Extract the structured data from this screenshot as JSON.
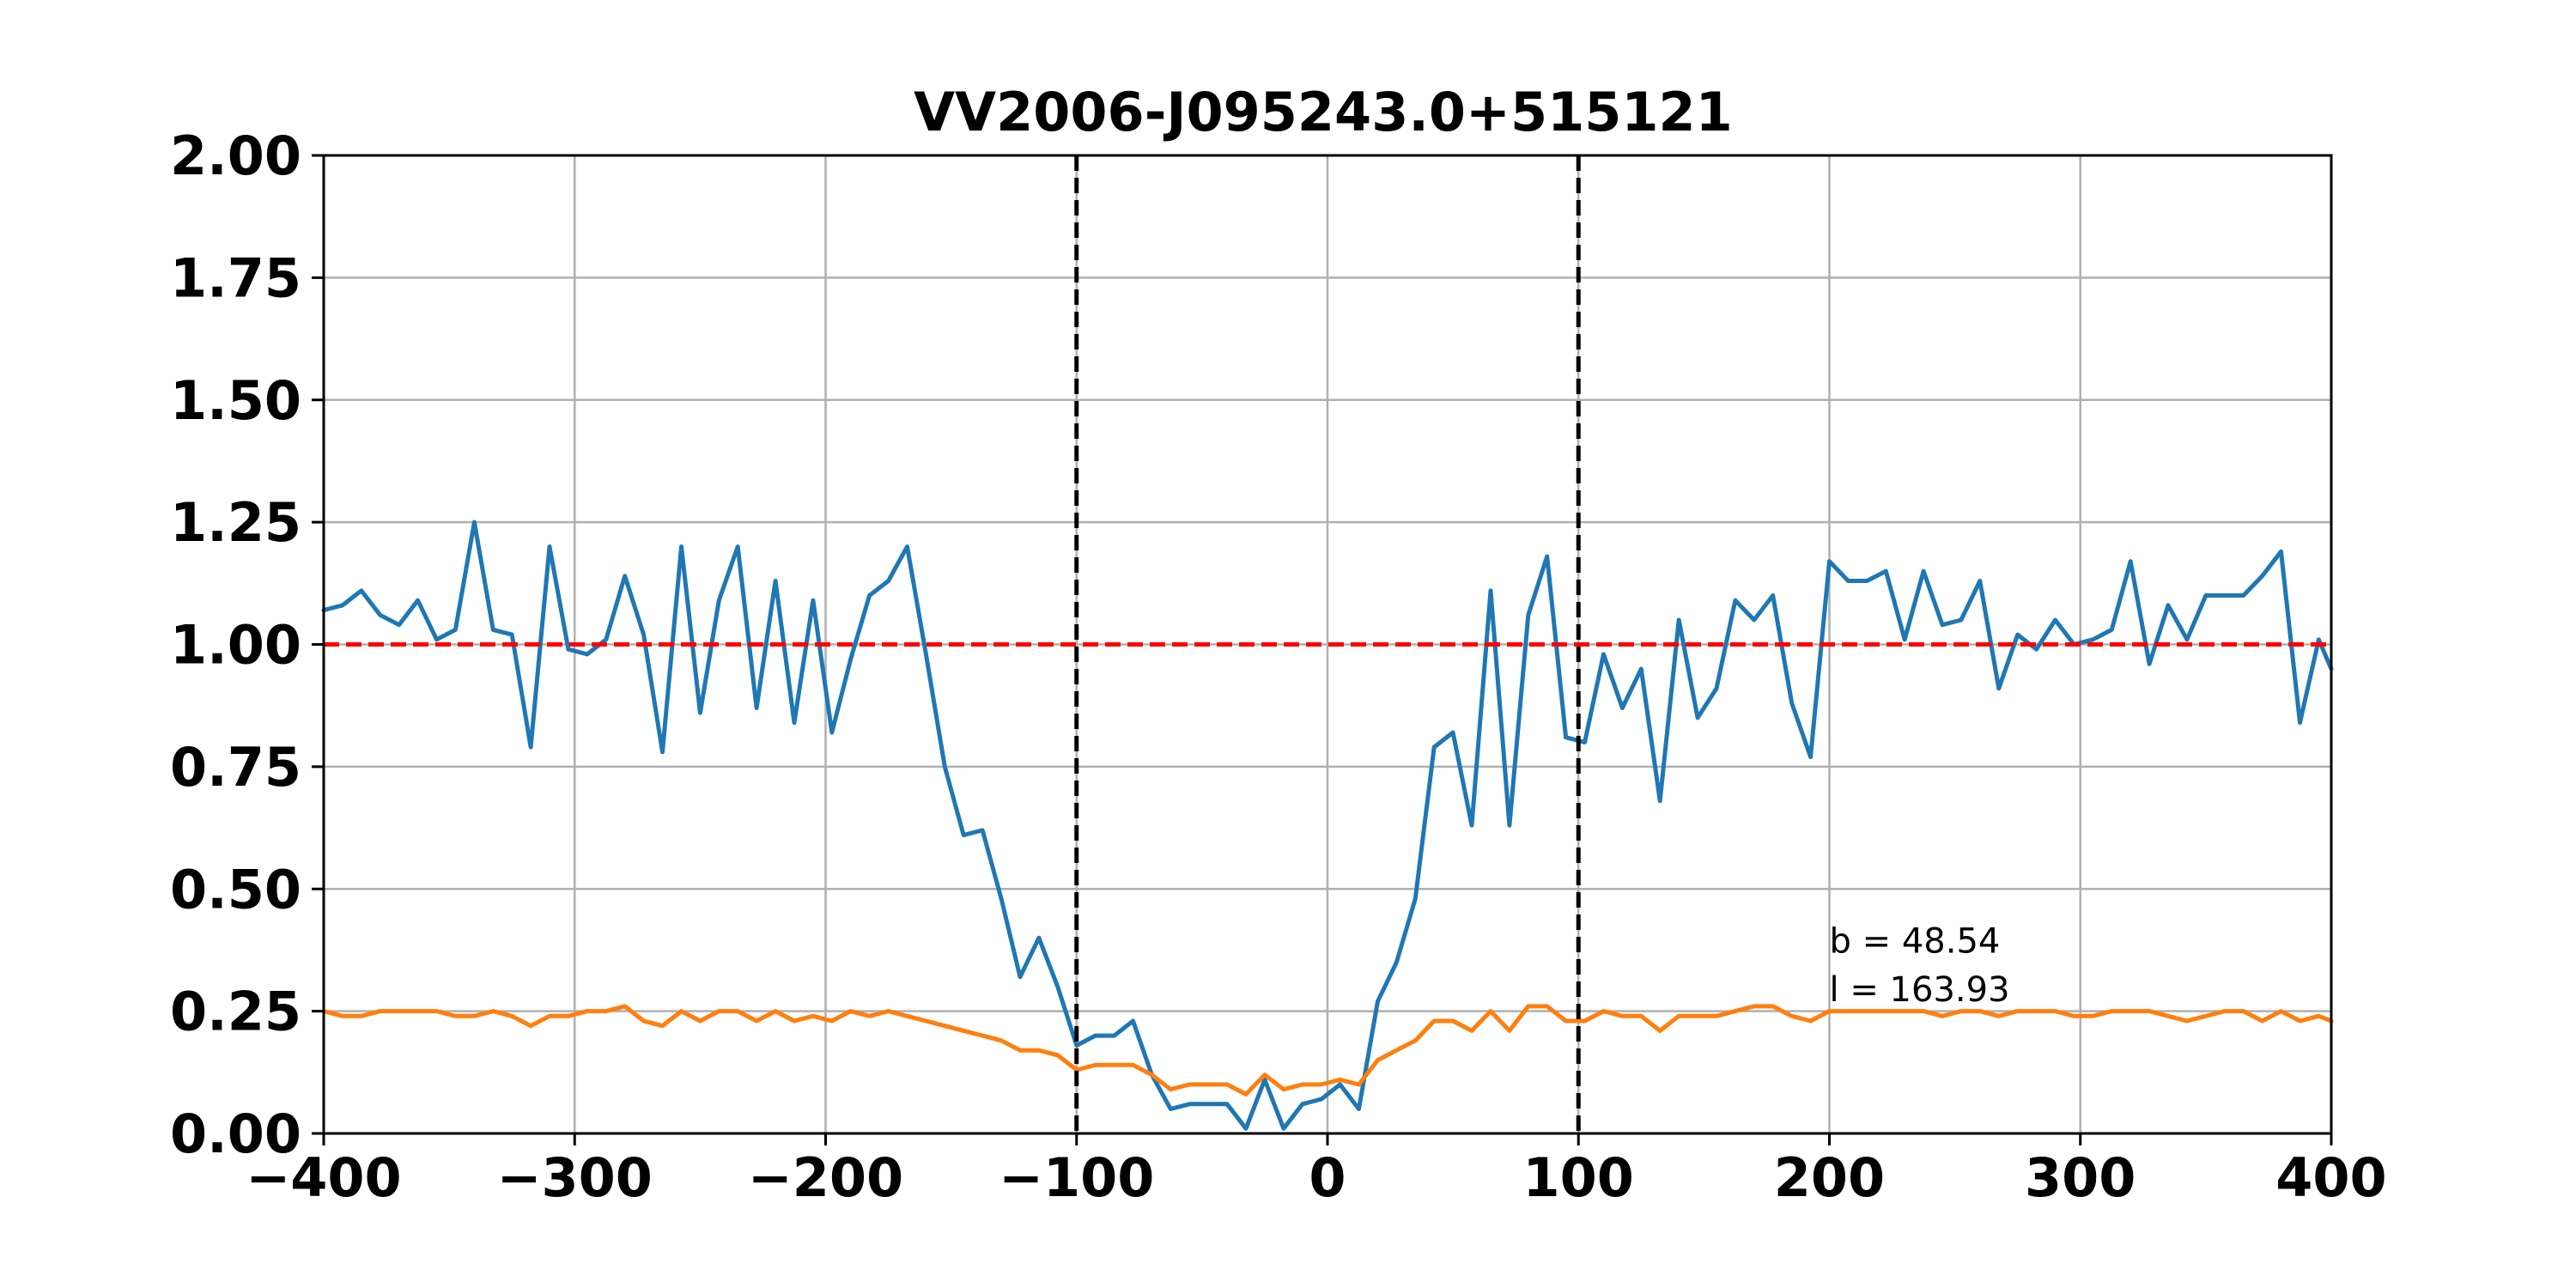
{
  "chart_data": {
    "type": "line",
    "title": "VV2006-J095243.0+515121",
    "xlabel": "",
    "ylabel": "",
    "xlim": [
      -400,
      400
    ],
    "ylim": [
      0.0,
      2.0
    ],
    "grid": true,
    "x_ticks": [
      -400,
      -300,
      -200,
      -100,
      0,
      100,
      200,
      300,
      400
    ],
    "x_tick_labels": [
      "−400",
      "−300",
      "−200",
      "−100",
      "0",
      "100",
      "200",
      "300",
      "400"
    ],
    "y_ticks": [
      0.0,
      0.25,
      0.5,
      0.75,
      1.0,
      1.25,
      1.5,
      1.75,
      2.0
    ],
    "y_tick_labels": [
      "0.00",
      "0.25",
      "0.50",
      "0.75",
      "1.00",
      "1.25",
      "1.50",
      "1.75",
      "2.00"
    ],
    "x": [
      -400,
      -392.5,
      -385,
      -377.5,
      -370,
      -362.5,
      -355,
      -347.5,
      -340,
      -332.5,
      -325,
      -317.5,
      -310,
      -302.5,
      -295,
      -287.5,
      -280,
      -272.5,
      -265,
      -257.5,
      -250,
      -242.5,
      -235,
      -227.5,
      -220,
      -212.5,
      -205,
      -197.5,
      -190,
      -182.5,
      -175,
      -167.5,
      -160,
      -152.5,
      -145,
      -137.5,
      -130,
      -122.5,
      -115,
      -107.5,
      -100,
      -92.5,
      -85,
      -77.5,
      -70,
      -62.5,
      -55,
      -47.5,
      -40,
      -32.5,
      -25,
      -17.5,
      -10,
      -2.5,
      5,
      12.5,
      20,
      27.5,
      35,
      42.5,
      50,
      57.5,
      65,
      72.5,
      80,
      87.5,
      95,
      102.5,
      110,
      117.5,
      125,
      132.5,
      140,
      147.5,
      155,
      162.5,
      170,
      177.5,
      185,
      192.5,
      200,
      207.5,
      215,
      222.5,
      230,
      237.5,
      245,
      252.5,
      260,
      267.5,
      275,
      282.5,
      290,
      297.5,
      305,
      312.5,
      320,
      327.5,
      335,
      342.5,
      350,
      357.5,
      365,
      372.5,
      380,
      387.5,
      395,
      400
    ],
    "series": [
      {
        "color": "#1f77b4",
        "values": [
          1.07,
          1.08,
          1.11,
          1.06,
          1.04,
          1.09,
          1.01,
          1.03,
          1.25,
          1.03,
          1.02,
          0.79,
          1.2,
          0.99,
          0.98,
          1.01,
          1.14,
          1.02,
          0.78,
          1.2,
          0.86,
          1.09,
          1.2,
          0.87,
          1.13,
          0.84,
          1.09,
          0.82,
          0.97,
          1.1,
          1.13,
          1.2,
          0.98,
          0.75,
          0.61,
          0.62,
          0.48,
          0.32,
          0.4,
          0.3,
          0.18,
          0.2,
          0.2,
          0.23,
          0.12,
          0.05,
          0.06,
          0.06,
          0.06,
          0.01,
          0.11,
          0.01,
          0.06,
          0.07,
          0.1,
          0.05,
          0.27,
          0.35,
          0.48,
          0.79,
          0.82,
          0.63,
          1.11,
          0.63,
          1.06,
          1.18,
          0.81,
          0.8,
          0.98,
          0.87,
          0.95,
          0.68,
          1.05,
          0.85,
          0.91,
          1.09,
          1.05,
          1.1,
          0.88,
          0.77,
          1.17,
          1.13,
          1.13,
          1.15,
          1.01,
          1.15,
          1.04,
          1.05,
          1.13,
          0.91,
          1.02,
          0.99,
          1.05,
          1.0,
          1.01,
          1.03,
          1.17,
          0.96,
          1.08,
          1.01,
          1.1,
          1.1,
          1.1,
          1.14,
          1.19,
          0.84,
          1.01,
          0.95
        ]
      },
      {
        "color": "#ff7f0e",
        "values": [
          0.25,
          0.24,
          0.24,
          0.25,
          0.25,
          0.25,
          0.25,
          0.24,
          0.24,
          0.25,
          0.24,
          0.22,
          0.24,
          0.24,
          0.25,
          0.25,
          0.26,
          0.23,
          0.22,
          0.25,
          0.23,
          0.25,
          0.25,
          0.23,
          0.25,
          0.23,
          0.24,
          0.23,
          0.25,
          0.24,
          0.25,
          0.24,
          0.23,
          0.22,
          0.21,
          0.2,
          0.19,
          0.17,
          0.17,
          0.16,
          0.13,
          0.14,
          0.14,
          0.14,
          0.12,
          0.09,
          0.1,
          0.1,
          0.1,
          0.08,
          0.12,
          0.09,
          0.1,
          0.1,
          0.11,
          0.1,
          0.15,
          0.17,
          0.19,
          0.23,
          0.23,
          0.21,
          0.25,
          0.21,
          0.26,
          0.26,
          0.23,
          0.23,
          0.25,
          0.24,
          0.24,
          0.21,
          0.24,
          0.24,
          0.24,
          0.25,
          0.26,
          0.26,
          0.24,
          0.23,
          0.25,
          0.25,
          0.25,
          0.25,
          0.25,
          0.25,
          0.24,
          0.25,
          0.25,
          0.24,
          0.25,
          0.25,
          0.25,
          0.24,
          0.24,
          0.25,
          0.25,
          0.25,
          0.24,
          0.23,
          0.24,
          0.25,
          0.25,
          0.23,
          0.25,
          0.23,
          0.24,
          0.23
        ]
      }
    ],
    "reference_lines": [
      {
        "orientation": "horizontal",
        "value": 1.0,
        "color": "#ff0000",
        "style": "dashed"
      },
      {
        "orientation": "vertical",
        "value": -100,
        "color": "#000000",
        "style": "dashed"
      },
      {
        "orientation": "vertical",
        "value": 100,
        "color": "#000000",
        "style": "dashed"
      }
    ],
    "annotations": [
      {
        "text": "b = 48.54",
        "x": 200,
        "y": 0.37
      },
      {
        "text": "l = 163.93",
        "x": 200,
        "y": 0.27
      }
    ]
  }
}
